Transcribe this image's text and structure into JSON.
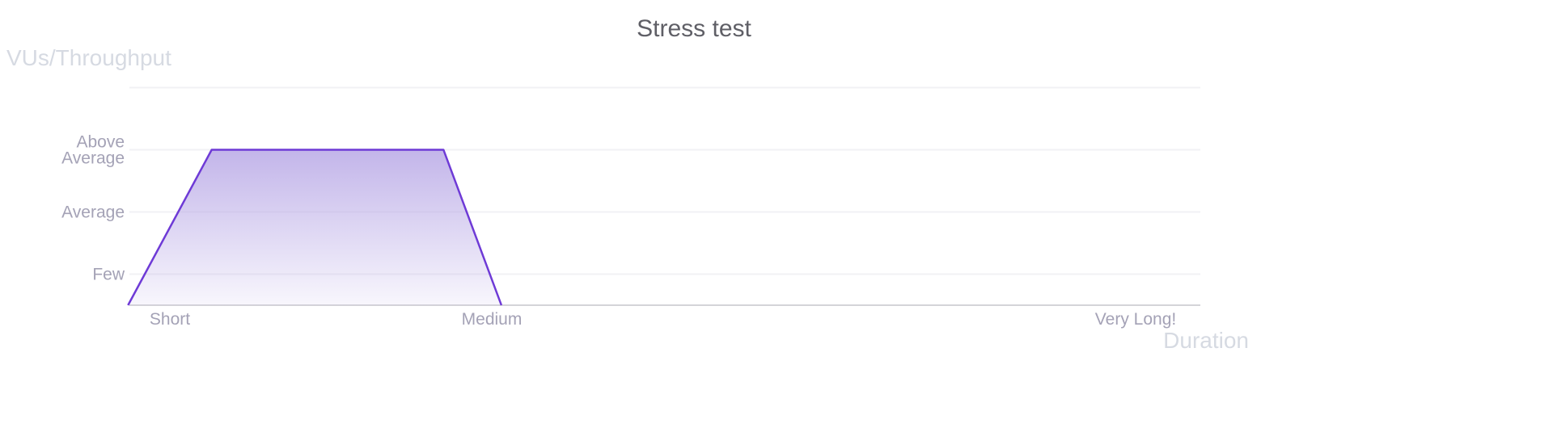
{
  "chart_data": {
    "type": "area",
    "title": "Stress test",
    "ylabel": "VUs/Throughput",
    "xlabel": "Duration",
    "y_ticks": [
      {
        "value": 1,
        "label": "Few"
      },
      {
        "value": 2,
        "label": "Average"
      },
      {
        "value": 3,
        "label": "Above Average"
      },
      {
        "value": 4,
        "label": ""
      }
    ],
    "x_ticks": [
      {
        "value": 1,
        "label": "Short"
      },
      {
        "value": 2,
        "label": "Medium"
      },
      {
        "value": 4,
        "label": "Very Long!"
      }
    ],
    "ylim": [
      0.5,
      4
    ],
    "xlim": [
      0.87,
      4.2
    ],
    "grid": true,
    "series": [
      {
        "x": [
          0.87,
          1.13,
          1.85,
          2.03
        ],
        "y": [
          0.5,
          3,
          3,
          0.5
        ]
      }
    ],
    "colors": {
      "line": "#6e3ad6",
      "fill": "#b8a8e6",
      "grid": "#f1f1f4",
      "baseline": "#d4d4d8"
    }
  }
}
